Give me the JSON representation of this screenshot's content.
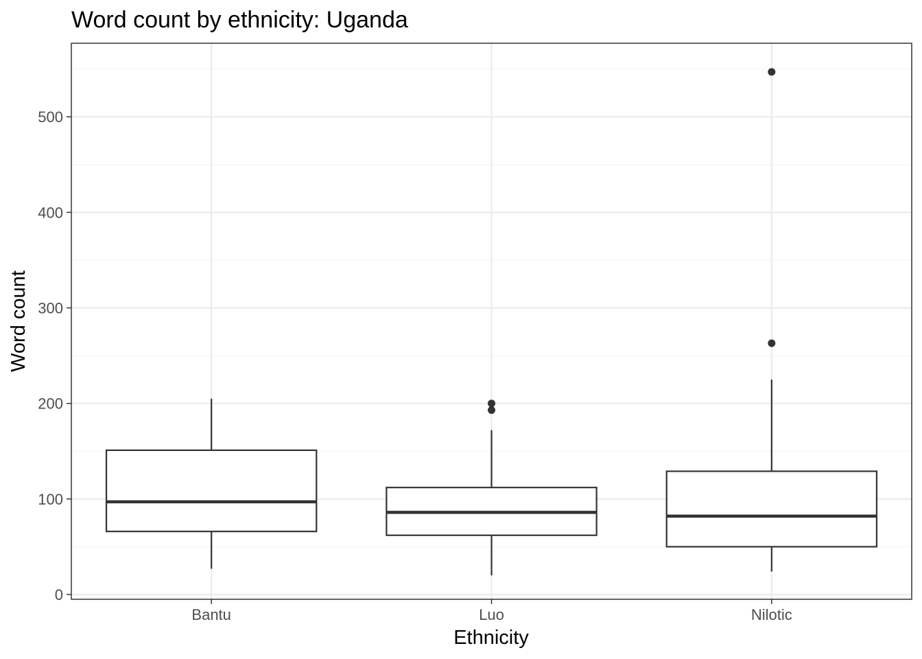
{
  "chart_data": {
    "type": "boxplot",
    "title": "Word count by ethnicity: Uganda",
    "xlabel": "Ethnicity",
    "ylabel": "Word count",
    "categories": [
      "Bantu",
      "Luo",
      "Nilotic"
    ],
    "ylim": [
      -5,
      577
    ],
    "yticks": [
      0,
      100,
      200,
      300,
      400,
      500
    ],
    "grid": true,
    "legend": "none",
    "boxes": [
      {
        "category": "Bantu",
        "whisker_low": 27,
        "q1": 66,
        "median": 97,
        "q3": 151,
        "whisker_high": 205,
        "outliers": []
      },
      {
        "category": "Luo",
        "whisker_low": 20,
        "q1": 62,
        "median": 86,
        "q3": 112,
        "whisker_high": 172,
        "outliers": [
          193,
          200
        ]
      },
      {
        "category": "Nilotic",
        "whisker_low": 24,
        "q1": 50,
        "median": 82,
        "q3": 129,
        "whisker_high": 225,
        "outliers": [
          263,
          547
        ]
      }
    ],
    "colors": {
      "panel_border": "#333333",
      "grid_major": "#ebebeb",
      "grid_minor": "#f5f5f5",
      "box_stroke": "#333333",
      "box_fill": "#ffffff",
      "outlier": "#333333",
      "tick_text": "#4d4d4d",
      "tick_mark": "#333333"
    }
  }
}
